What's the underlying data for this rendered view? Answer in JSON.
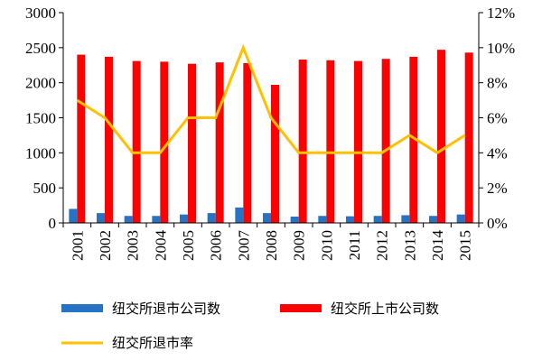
{
  "chart_data": {
    "type": "bar",
    "categories": [
      "2001",
      "2002",
      "2003",
      "2004",
      "2005",
      "2006",
      "2007",
      "2008",
      "2009",
      "2010",
      "2011",
      "2012",
      "2013",
      "2014",
      "2015"
    ],
    "series": [
      {
        "name": "纽交所退市公司数",
        "kind": "bar",
        "axis": "left",
        "color": "#2673C5",
        "values": [
          200,
          140,
          100,
          100,
          120,
          140,
          220,
          140,
          90,
          100,
          95,
          100,
          110,
          100,
          120
        ]
      },
      {
        "name": "纽交所上市公司数",
        "kind": "bar",
        "axis": "left",
        "color": "#FF0000",
        "values": [
          2400,
          2370,
          2310,
          2300,
          2270,
          2290,
          2280,
          1970,
          2330,
          2320,
          2310,
          2340,
          2370,
          2470,
          2430
        ]
      },
      {
        "name": "纽交所退市率",
        "kind": "line",
        "axis": "right",
        "color": "#FFC000",
        "values": [
          7,
          6,
          4,
          4,
          6,
          6,
          10,
          6,
          4,
          4,
          4,
          4,
          5,
          4,
          5
        ]
      }
    ],
    "left_axis": {
      "min": 0,
      "max": 3000,
      "ticks": [
        "0",
        "500",
        "1000",
        "1500",
        "2000",
        "2500",
        "3000"
      ]
    },
    "right_axis": {
      "min": 0,
      "max": 12,
      "ticks": [
        "0%",
        "2%",
        "4%",
        "6%",
        "8%",
        "10%",
        "12%"
      ]
    },
    "grid": false,
    "legend_position": "bottom"
  }
}
